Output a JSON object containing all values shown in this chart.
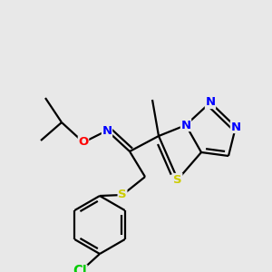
{
  "background_color": "#e8e8e8",
  "bond_color": "#000000",
  "atom_colors": {
    "N": "#0000ff",
    "O": "#ff0000",
    "S": "#cccc00",
    "Cl": "#00cc00",
    "C": "#000000"
  },
  "figsize": [
    3.0,
    3.0
  ],
  "dpi": 100
}
